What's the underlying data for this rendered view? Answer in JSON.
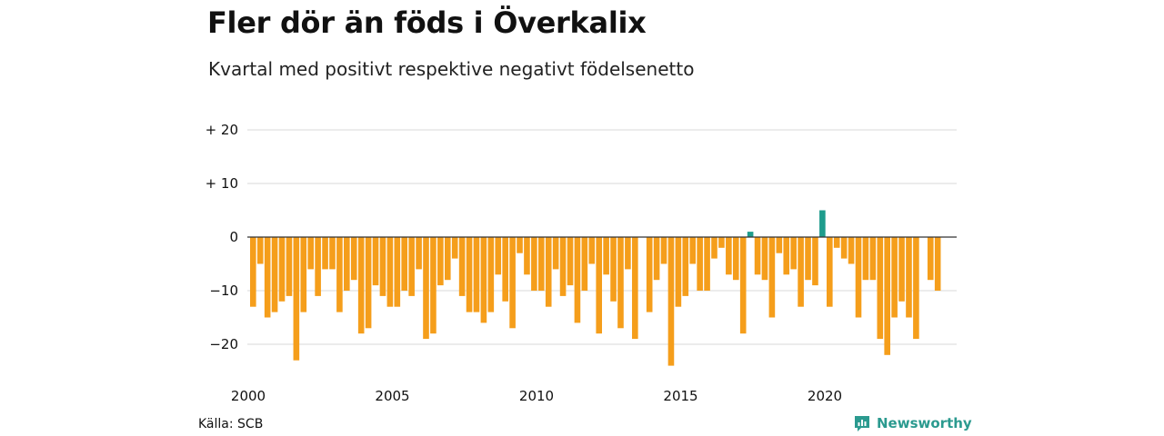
{
  "header": {
    "title": "Fler dör än föds i Överkalix",
    "subtitle": "Kvartal med positivt respektive negativt födelsenetto"
  },
  "footer": {
    "source": "Källa: SCB",
    "brand": "Newsworthy"
  },
  "colors": {
    "negative": "#f59e1b",
    "positive": "#1e9c8c",
    "grid": "#d9d9d9",
    "zero_line": "#333333",
    "brand": "#2b9a8f"
  },
  "chart_data": {
    "type": "bar",
    "x_unit": "quarter",
    "first_quarter": "2000-Q1",
    "y_tick_labels": [
      "+ 20",
      "+ 10",
      "0",
      "−10",
      "−20"
    ],
    "y_ticks": [
      20,
      10,
      0,
      -10,
      -20
    ],
    "x_tick_labels": [
      "2000",
      "2005",
      "2010",
      "2015",
      "2020"
    ],
    "ylim": [
      -25,
      25
    ],
    "grid": true,
    "values": [
      -13,
      -5,
      -15,
      -14,
      -12,
      -11,
      -23,
      -14,
      -6,
      -11,
      -6,
      -6,
      -14,
      -10,
      -8,
      -18,
      -17,
      -9,
      -11,
      -13,
      -13,
      -10,
      -11,
      -6,
      -19,
      -18,
      -9,
      -8,
      -4,
      -11,
      -14,
      -14,
      -16,
      -14,
      -7,
      -12,
      -17,
      -3,
      -7,
      -10,
      -10,
      -13,
      -6,
      -11,
      -9,
      -16,
      -10,
      -5,
      -18,
      -7,
      -12,
      -17,
      -6,
      -19,
      0,
      -14,
      -8,
      -5,
      -24,
      -13,
      -11,
      -5,
      -10,
      -10,
      -4,
      -2,
      -7,
      -8,
      -18,
      1,
      -7,
      -8,
      -15,
      -3,
      -7,
      -6,
      -13,
      -8,
      -9,
      5,
      -13,
      -2,
      -4,
      -5,
      -15,
      -8,
      -8,
      -19,
      -22,
      -15,
      -12,
      -15,
      -19,
      0,
      -8,
      -10
    ]
  }
}
